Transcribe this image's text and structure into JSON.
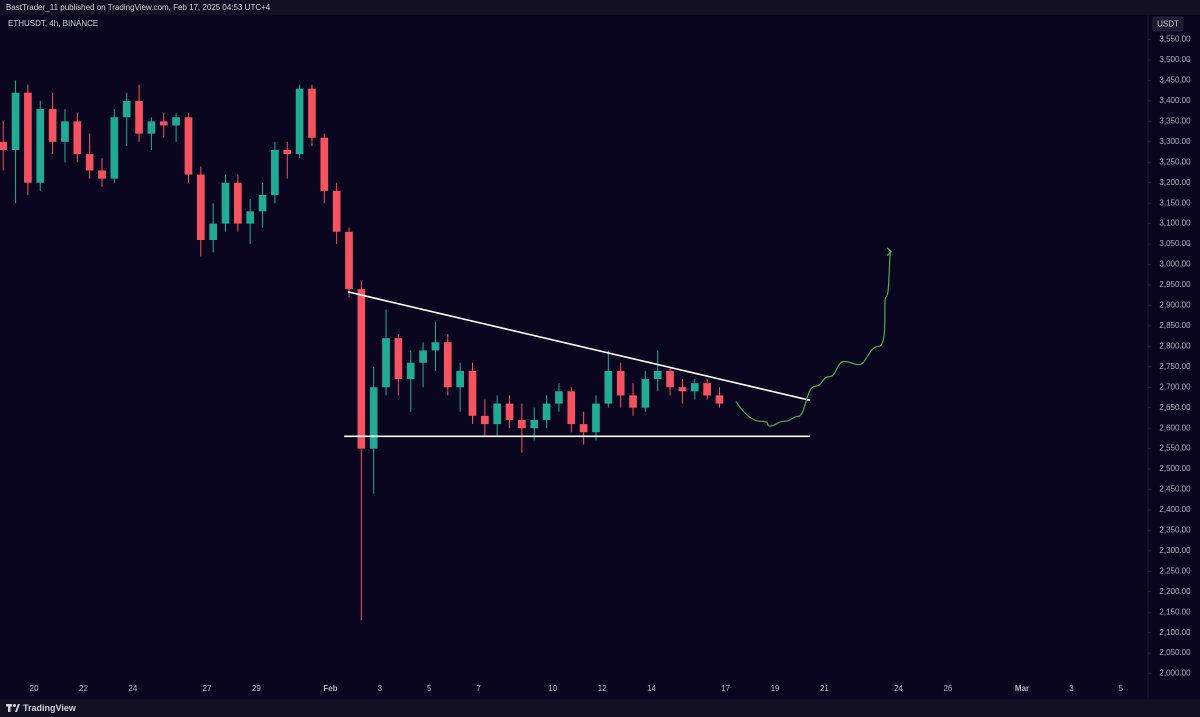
{
  "chart_data": {
    "type": "candlestick",
    "header": "BastTrader_11 published on TradingView.com, Feb 17, 2025 04:53 UTC+4",
    "symbol": "ETHUSDT, 4h, BINANCE",
    "currency": "USDT",
    "footer": "TradingView",
    "up_color": "#22ab94",
    "down_color": "#f7525f",
    "x": [
      18.75,
      19.25,
      19.75,
      20.25,
      20.75,
      21.25,
      21.75,
      22.25,
      22.75,
      23.25,
      23.75,
      24.25,
      24.75,
      25.25,
      25.75,
      26.25,
      26.75,
      27.25,
      27.75,
      28.25,
      28.75,
      29.25,
      29.75,
      30.25,
      30.75,
      31.25,
      31.75,
      32.25,
      32.75,
      33.25,
      33.75,
      34.25,
      34.75,
      35.25,
      35.75,
      36.25,
      36.75,
      37.25,
      37.75,
      38.25,
      38.75,
      39.25,
      39.75,
      40.25,
      40.75,
      41.25,
      41.75,
      42.25,
      42.75,
      43.25,
      43.75,
      44.25,
      44.75,
      45.25,
      45.75,
      46.25,
      46.75,
      47.25,
      47.75
    ],
    "open": [
      3300,
      3280,
      3420,
      3200,
      3380,
      3300,
      3350,
      3270,
      3230,
      3210,
      3360,
      3400,
      3320,
      3350,
      3340,
      3360,
      3220,
      3060,
      3100,
      3200,
      3100,
      3130,
      3170,
      3280,
      3270,
      3430,
      3310,
      3180,
      3080,
      2940,
      2550,
      2700,
      2820,
      2720,
      2760,
      2790,
      2810,
      2700,
      2740,
      2630,
      2610,
      2660,
      2620,
      2600,
      2620,
      2660,
      2690,
      2610,
      2590,
      2660,
      2740,
      2680,
      2650,
      2720,
      2740,
      2700,
      2690,
      2710,
      2680
    ],
    "high": [
      3350,
      3450,
      3440,
      3400,
      3420,
      3380,
      3370,
      3320,
      3260,
      3380,
      3420,
      3440,
      3360,
      3370,
      3370,
      3370,
      3240,
      3150,
      3220,
      3220,
      3160,
      3200,
      3300,
      3300,
      3440,
      3440,
      3320,
      3200,
      3090,
      2960,
      2750,
      2890,
      2830,
      2790,
      2810,
      2860,
      2830,
      2760,
      2760,
      2670,
      2680,
      2680,
      2660,
      2650,
      2680,
      2710,
      2700,
      2640,
      2680,
      2790,
      2760,
      2710,
      2740,
      2790,
      2750,
      2720,
      2720,
      2720,
      2700
    ],
    "low": [
      3230,
      3150,
      3170,
      3180,
      3270,
      3250,
      3250,
      3210,
      3190,
      3200,
      3290,
      3300,
      3280,
      3310,
      3300,
      3200,
      3020,
      3030,
      3080,
      3080,
      3050,
      3090,
      3150,
      3210,
      3260,
      3290,
      3150,
      3050,
      2920,
      2130,
      2440,
      2680,
      2680,
      2640,
      2700,
      2740,
      2680,
      2640,
      2610,
      2580,
      2580,
      2600,
      2540,
      2570,
      2600,
      2640,
      2590,
      2560,
      2570,
      2650,
      2650,
      2630,
      2640,
      2690,
      2680,
      2660,
      2670,
      2670,
      2650
    ],
    "close": [
      3280,
      3420,
      3200,
      3380,
      3300,
      3350,
      3270,
      3230,
      3210,
      3360,
      3400,
      3320,
      3350,
      3340,
      3360,
      3220,
      3060,
      3100,
      3200,
      3100,
      3130,
      3170,
      3280,
      3270,
      3430,
      3310,
      3180,
      3080,
      2940,
      2550,
      2700,
      2820,
      2720,
      2760,
      2790,
      2810,
      2700,
      2740,
      2630,
      2610,
      2660,
      2620,
      2600,
      2620,
      2660,
      2690,
      2610,
      2590,
      2660,
      2740,
      2680,
      2650,
      2720,
      2740,
      2700,
      2690,
      2710,
      2680,
      2660
    ],
    "lines": [
      {
        "color": "#ffffff",
        "x": [
          32.71,
          51.42
        ],
        "y": [
          2933,
          2668
        ]
      },
      {
        "color": "#ffffff",
        "x": [
          32.55,
          51.42
        ],
        "y": [
          2580,
          2580
        ]
      },
      {
        "color": "#4caf50",
        "x": [
          48.42,
          49.39,
          49.8,
          50.4,
          50.95,
          51.6,
          52.2,
          52.8,
          53.4,
          54.2,
          54.5,
          54.7
        ],
        "y": [
          2665,
          2617,
          2605,
          2617,
          2629,
          2702,
          2726,
          2763,
          2755,
          2800,
          2921,
          3031
        ]
      }
    ],
    "xlim": [
      18.62,
      65.1
    ],
    "ylim": [
      1977,
      3610
    ],
    "xticks": [
      20,
      22,
      24,
      27,
      29,
      {
        "value": 32,
        "label": "Feb"
      },
      {
        "value": 34,
        "label": "3"
      },
      {
        "value": 36,
        "label": "5"
      },
      {
        "value": 38,
        "label": "7"
      },
      {
        "value": 41,
        "label": "10"
      },
      {
        "value": 43,
        "label": "12"
      },
      {
        "value": 45,
        "label": "14"
      },
      {
        "value": 48,
        "label": "17"
      },
      {
        "value": 50,
        "label": "19"
      },
      {
        "value": 52,
        "label": "21"
      },
      {
        "value": 55,
        "label": "24"
      },
      {
        "value": 57,
        "label": "26"
      },
      {
        "value": 60,
        "label": "Mar"
      },
      {
        "value": 62,
        "label": "3"
      },
      {
        "value": 64,
        "label": "5"
      }
    ],
    "yticks": [
      {
        "value": 2000,
        "label": "2,000.00"
      },
      {
        "value": 2050,
        "label": "2,050.00"
      },
      {
        "value": 2100,
        "label": "2,100.00"
      },
      {
        "value": 2150,
        "label": "2,150.00"
      },
      {
        "value": 2200,
        "label": "2,200.00"
      },
      {
        "value": 2250,
        "label": "2,250.00"
      },
      {
        "value": 2300,
        "label": "2,300.00"
      },
      {
        "value": 2350,
        "label": "2,350.00"
      },
      {
        "value": 2400,
        "label": "2,400.00"
      },
      {
        "value": 2450,
        "label": "2,450.00"
      },
      {
        "value": 2500,
        "label": "2,500.00"
      },
      {
        "value": 2550,
        "label": "2,550.00"
      },
      {
        "value": 2600,
        "label": "2,600.00"
      },
      {
        "value": 2650,
        "label": "2,650.00"
      },
      {
        "value": 2700,
        "label": "2,700.00"
      },
      {
        "value": 2750,
        "label": "2,750.00"
      },
      {
        "value": 2800,
        "label": "2,800.00"
      },
      {
        "value": 2850,
        "label": "2,850.00"
      },
      {
        "value": 2900,
        "label": "2,900.00"
      },
      {
        "value": 2950,
        "label": "2,950.00"
      },
      {
        "value": 3000,
        "label": "3,000.00"
      },
      {
        "value": 3050,
        "label": "3,050.00"
      },
      {
        "value": 3100,
        "label": "3,100.00"
      },
      {
        "value": 3150,
        "label": "3,150.00"
      },
      {
        "value": 3200,
        "label": "3,200.00"
      },
      {
        "value": 3250,
        "label": "3,250.00"
      },
      {
        "value": 3300,
        "label": "3,300.00"
      },
      {
        "value": 3350,
        "label": "3,350.00"
      },
      {
        "value": 3400,
        "label": "3,400.00"
      },
      {
        "value": 3450,
        "label": "3,450.00"
      },
      {
        "value": 3500,
        "label": "3,500.00"
      },
      {
        "value": 3550,
        "label": "3,550.00"
      }
    ]
  }
}
